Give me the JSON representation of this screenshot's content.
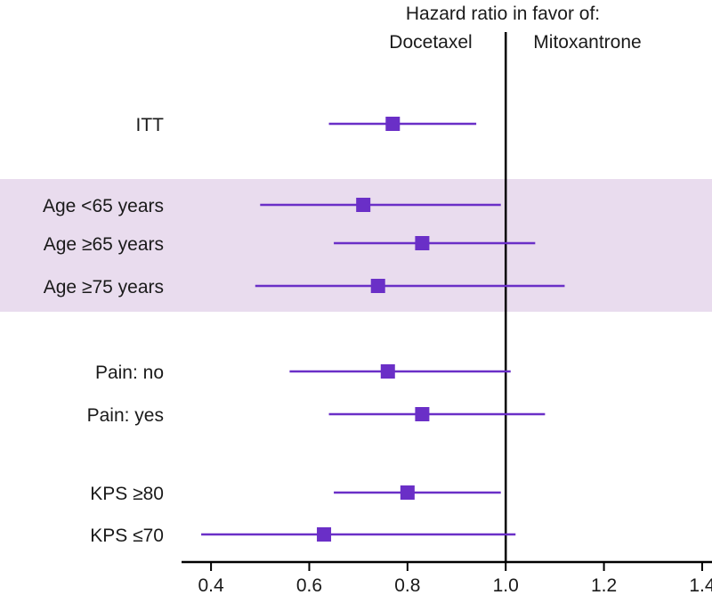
{
  "chart_data": {
    "type": "forest",
    "title": "Hazard ratio in favor of:",
    "left_label": "Docetaxel",
    "right_label": "Mitoxantrone",
    "reference_line": 1.0,
    "xlim": [
      0.34,
      1.42
    ],
    "xticks": [
      0.4,
      0.6,
      0.8,
      1.0,
      1.2,
      1.4
    ],
    "xtick_labels": [
      "0.4",
      "0.6",
      "0.8",
      "1.0",
      "1.2",
      "1.4"
    ],
    "colors": {
      "marker": "#6a2fc7",
      "line": "#6a2fc7",
      "highlight_band": "#e9dcee",
      "axis": "#000000"
    },
    "rows": [
      {
        "label": "ITT",
        "hr": 0.77,
        "lo": 0.64,
        "hi": 0.94
      },
      {
        "label": "Age <65 years",
        "hr": 0.71,
        "lo": 0.5,
        "hi": 0.99
      },
      {
        "label": "Age ≥65 years",
        "hr": 0.83,
        "lo": 0.65,
        "hi": 1.06
      },
      {
        "label": "Age ≥75 years",
        "hr": 0.74,
        "lo": 0.49,
        "hi": 1.12
      },
      {
        "label": "Pain: no",
        "hr": 0.76,
        "lo": 0.56,
        "hi": 1.01
      },
      {
        "label": "Pain: yes",
        "hr": 0.83,
        "lo": 0.64,
        "hi": 1.08
      },
      {
        "label": "KPS ≥80",
        "hr": 0.8,
        "lo": 0.65,
        "hi": 0.99
      },
      {
        "label": "KPS ≤70",
        "hr": 0.63,
        "lo": 0.38,
        "hi": 1.02
      }
    ],
    "highlight_group": [
      "Age <65 years",
      "Age ≥65 years",
      "Age ≥75 years"
    ]
  }
}
